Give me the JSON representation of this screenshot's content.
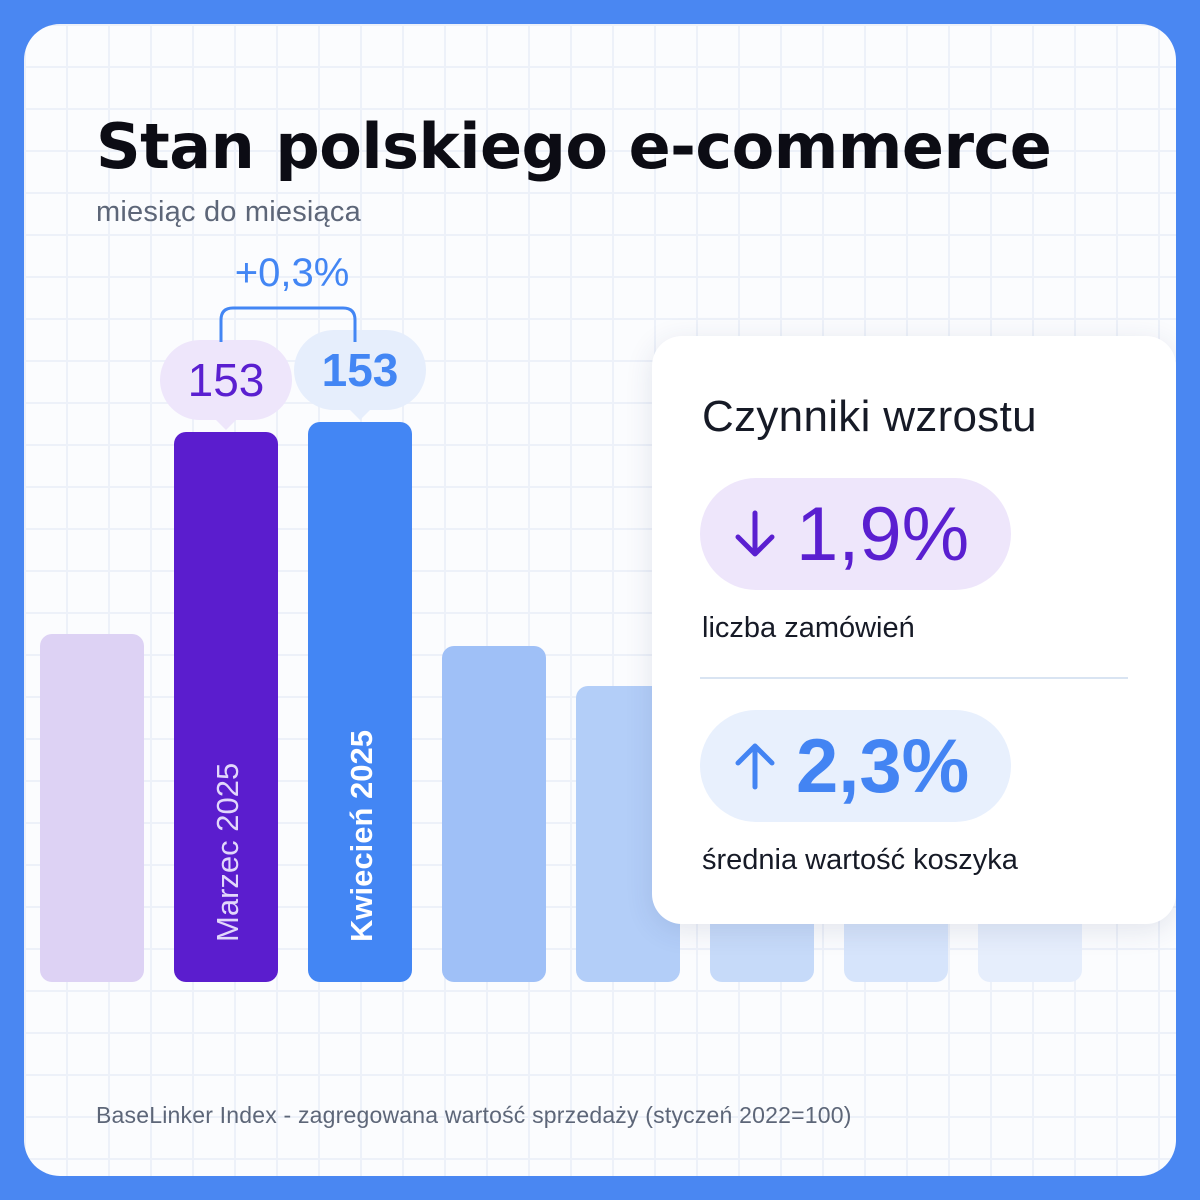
{
  "header": {
    "title": "Stan polskiego e-commerce",
    "subtitle": "miesiąc do miesiąca"
  },
  "chart_data": {
    "type": "bar",
    "categories": [
      "",
      "Marzec 2025",
      "Kwiecień 2025",
      "",
      "",
      "",
      "",
      ""
    ],
    "values": [
      null,
      153,
      153,
      null,
      null,
      null,
      null,
      null
    ],
    "value_labels": [
      "",
      "153",
      "153",
      "",
      "",
      "",
      "",
      ""
    ],
    "change_label": "+0,3%",
    "colors": {
      "march": "#5b1dce",
      "april": "#4386f4",
      "march_badge": "#eee6fb",
      "april_badge": "#e6eefc",
      "faded_purple": "#ddd2f4",
      "faded_blue": "#a5c4f8"
    }
  },
  "factors": {
    "title": "Czynniki wzrostu",
    "items": [
      {
        "direction": "down",
        "icon": "arrow-down-icon",
        "value": "1,9%",
        "label": "liczba zamówień"
      },
      {
        "direction": "up",
        "icon": "arrow-up-icon",
        "value": "2,3%",
        "label": "średnia wartość koszyka"
      }
    ]
  },
  "footnote": "BaseLinker Index - zagregowana wartość sprzedaży (styczeń 2022=100)"
}
